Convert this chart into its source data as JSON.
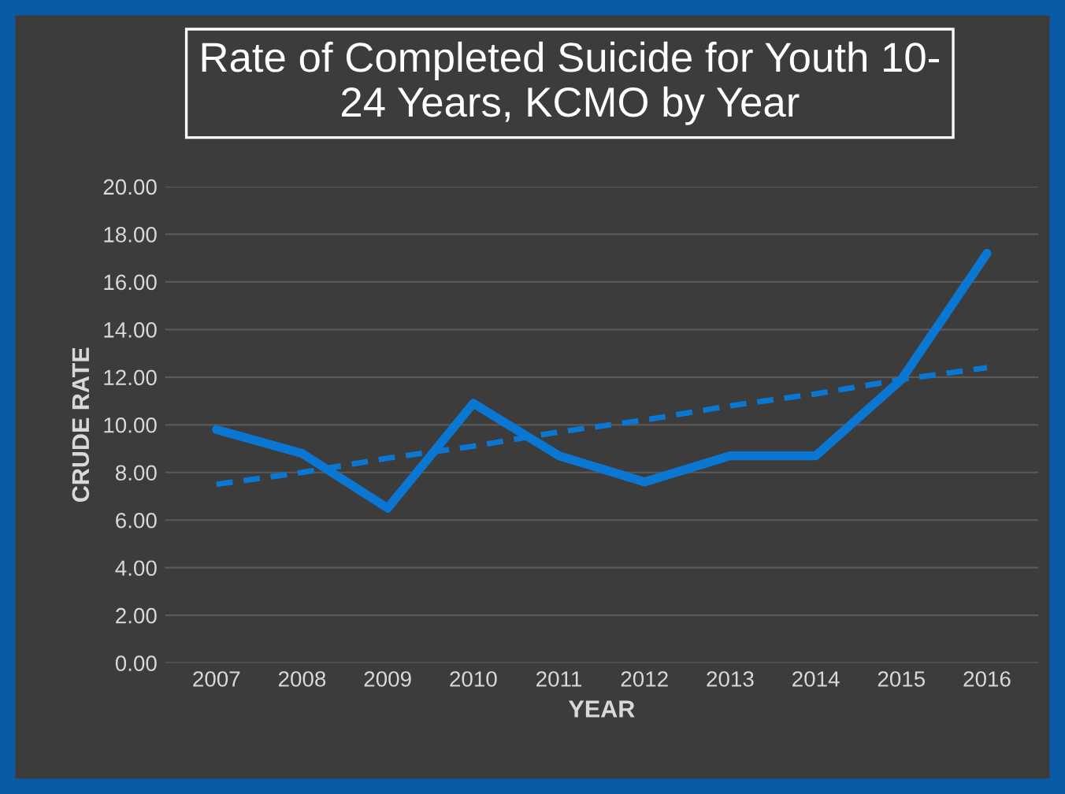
{
  "chart_data": {
    "type": "line",
    "title": "Rate of Completed Suicide for Youth 10-\n24 Years, KCMO by Year",
    "xlabel": "YEAR",
    "ylabel": "CRUDE RATE",
    "categories": [
      "2007",
      "2008",
      "2009",
      "2010",
      "2011",
      "2012",
      "2013",
      "2014",
      "2015",
      "2016"
    ],
    "series": [
      {
        "color": "#0a78d2",
        "values": [
          9.8,
          8.8,
          6.5,
          10.9,
          8.7,
          7.6,
          8.7,
          8.7,
          11.9,
          17.2
        ],
        "line_style": "solid"
      },
      {
        "type": "line",
        "color": "#0a78d2",
        "values": [
          7.5,
          8.0,
          8.6,
          9.1,
          9.7,
          10.2,
          10.8,
          11.3,
          11.9,
          12.4
        ],
        "line_style": "dashed"
      }
    ],
    "ylim": [
      0,
      20
    ],
    "yticks": [
      {
        "value": 0,
        "label": "0.00"
      },
      {
        "value": 2,
        "label": "2.00"
      },
      {
        "value": 4,
        "label": "4.00"
      },
      {
        "value": 6,
        "label": "6.00"
      },
      {
        "value": 8,
        "label": "8.00"
      },
      {
        "value": 10,
        "label": "10.00"
      },
      {
        "value": 12,
        "label": "12.00"
      },
      {
        "value": 14,
        "label": "14.00"
      },
      {
        "value": 16,
        "label": "16.00"
      },
      {
        "value": 18,
        "label": "18.00"
      },
      {
        "value": 20,
        "label": "20.00"
      }
    ],
    "grid": "y",
    "marker": "none"
  }
}
